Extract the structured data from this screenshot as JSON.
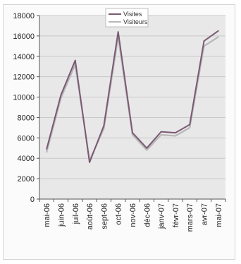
{
  "chart_data": {
    "type": "line",
    "categories": [
      "mai-06",
      "juin-06",
      "juil-06",
      "août-06",
      "sept-06",
      "oct-06",
      "nov-06",
      "déc-06",
      "janv-07",
      "févr-07",
      "mars-07",
      "avr-07",
      "mai-07"
    ],
    "series": [
      {
        "name": "Visites",
        "color": "#7a5a72",
        "values": [
          4900,
          10200,
          13600,
          3600,
          7200,
          16400,
          6500,
          5000,
          6600,
          6500,
          7300,
          15500,
          16500
        ]
      },
      {
        "name": "Visiteurs",
        "color": "#b8b8b8",
        "values": [
          4600,
          9900,
          13200,
          3800,
          6900,
          15900,
          6300,
          4800,
          6300,
          6200,
          7000,
          15000,
          15900
        ]
      }
    ],
    "y_ticks": [
      "0",
      "2000",
      "4000",
      "6000",
      "8000",
      "10000",
      "12000",
      "14000",
      "16000",
      "18000"
    ],
    "ylim": [
      0,
      18000
    ],
    "grid": true,
    "legend_position": "top-center",
    "plot_background": "#e8e8e8",
    "gridline_color": "#c9c9c9"
  }
}
